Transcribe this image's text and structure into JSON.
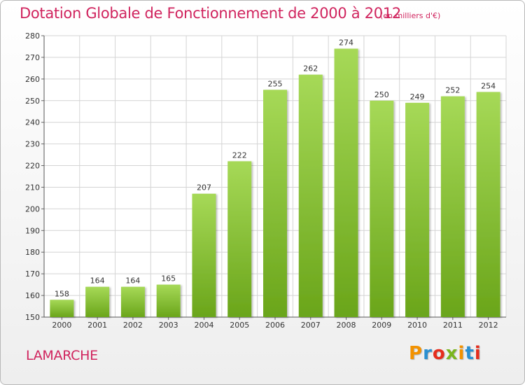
{
  "header": {
    "title": "Dotation Globale de Fonctionnement de 2000 à 2012",
    "subtitle": "(en milliers d'€)"
  },
  "footer": {
    "commune": "LAMARCHE",
    "logo_letters": [
      "P",
      "r",
      "o",
      "x",
      "i",
      "t",
      "i"
    ],
    "logo_colors": [
      "#f39200",
      "#2a8fd0",
      "#e52d1d",
      "#7ab51d",
      "#f39200",
      "#2a8fd0",
      "#e52d1d"
    ]
  },
  "colors": {
    "title": "#d0245e",
    "bar_light": "#a6d957",
    "bar_dark": "#6aa51a",
    "grid": "#d4d4d4"
  },
  "chart_data": {
    "type": "bar",
    "title": "Dotation Globale de Fonctionnement de 2000 à 2012",
    "subtitle": "(en milliers d'€)",
    "xlabel": "",
    "ylabel": "",
    "categories": [
      "2000",
      "2001",
      "2002",
      "2003",
      "2004",
      "2005",
      "2006",
      "2007",
      "2008",
      "2009",
      "2010",
      "2011",
      "2012"
    ],
    "values": [
      158,
      164,
      164,
      165,
      207,
      222,
      255,
      262,
      274,
      250,
      249,
      252,
      254
    ],
    "ylim": [
      150,
      280
    ],
    "yticks": [
      150,
      160,
      170,
      180,
      190,
      200,
      210,
      220,
      230,
      240,
      250,
      260,
      270,
      280
    ],
    "grid": true,
    "data_labels": true
  }
}
